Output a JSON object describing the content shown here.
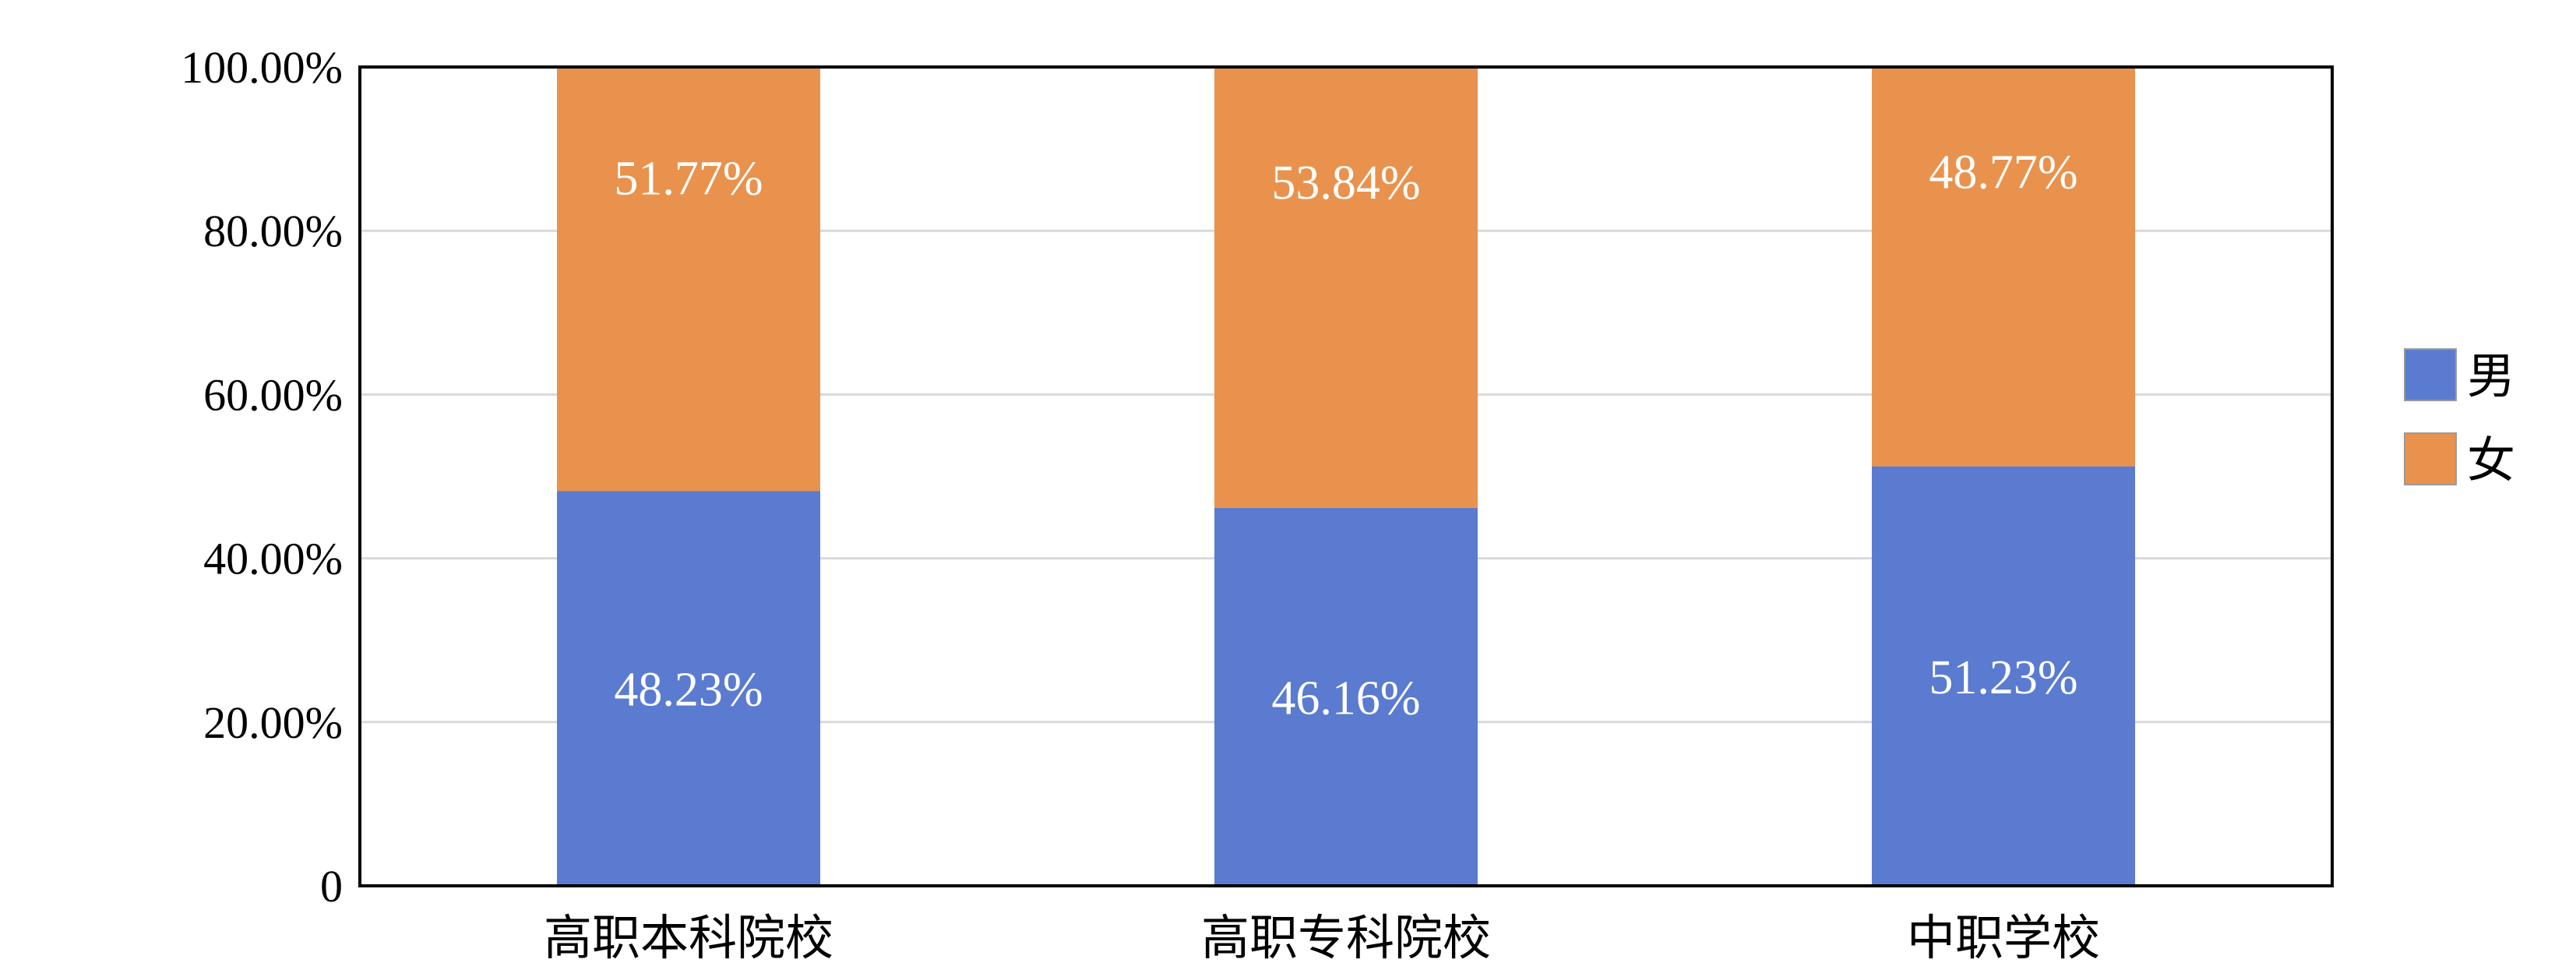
{
  "chart_data": {
    "type": "bar",
    "stacked": true,
    "categories": [
      "高职本科院校",
      "高职专科院校",
      "中职学校"
    ],
    "series": [
      {
        "name": "男",
        "color": "#5b7bd0",
        "values": [
          48.23,
          46.16,
          51.23
        ],
        "labels": [
          "48.23%",
          "46.16%",
          "51.23%"
        ]
      },
      {
        "name": "女",
        "color": "#e9924d",
        "values": [
          51.77,
          53.84,
          48.77
        ],
        "labels": [
          "51.77%",
          "53.84%",
          "48.77%"
        ]
      }
    ],
    "yticks": [
      {
        "value": 0,
        "label": "0"
      },
      {
        "value": 20,
        "label": "20.00%"
      },
      {
        "value": 40,
        "label": "40.00%"
      },
      {
        "value": 60,
        "label": "60.00%"
      },
      {
        "value": 80,
        "label": "80.00%"
      },
      {
        "value": 100,
        "label": "100.00%"
      }
    ],
    "ylim": [
      0,
      100
    ],
    "grid": true,
    "legend": "right"
  }
}
